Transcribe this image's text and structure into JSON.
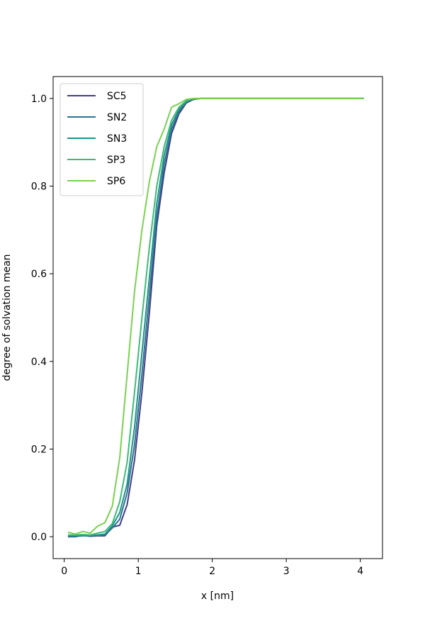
{
  "chart_data": {
    "type": "line",
    "title": "",
    "xlabel": "x [nm]",
    "ylabel": "degree of solvation mean",
    "xlim": [
      -0.15,
      4.3
    ],
    "ylim": [
      -0.05,
      1.05
    ],
    "xticks": [
      0,
      1,
      2,
      3,
      4
    ],
    "yticks": [
      0.0,
      0.2,
      0.4,
      0.6,
      0.8,
      1.0
    ],
    "xtick_labels": [
      "0",
      "1",
      "2",
      "3",
      "4"
    ],
    "ytick_labels": [
      "0.0",
      "0.2",
      "0.4",
      "0.6",
      "0.8",
      "1.0"
    ],
    "grid": false,
    "legend_position": "top-left",
    "x": [
      0.05,
      0.15,
      0.25,
      0.35,
      0.45,
      0.55,
      0.65,
      0.75,
      0.85,
      0.95,
      1.05,
      1.15,
      1.25,
      1.35,
      1.45,
      1.55,
      1.65,
      1.75,
      1.85,
      1.95,
      2.05,
      2.25,
      2.5,
      3.0,
      3.5,
      4.05
    ],
    "series": [
      {
        "name": "SC5",
        "color": "#433e85",
        "values": [
          0.0,
          0.0,
          0.003,
          0.001,
          0.002,
          0.002,
          0.022,
          0.026,
          0.073,
          0.175,
          0.33,
          0.51,
          0.71,
          0.83,
          0.92,
          0.965,
          0.99,
          0.998,
          1.0,
          1.0,
          1.0,
          1.0,
          1.0,
          1.0,
          1.0,
          1.0
        ]
      },
      {
        "name": "SN2",
        "color": "#2c728e",
        "values": [
          0.001,
          0.001,
          0.002,
          0.002,
          0.003,
          0.004,
          0.02,
          0.04,
          0.1,
          0.21,
          0.37,
          0.55,
          0.73,
          0.85,
          0.93,
          0.97,
          0.992,
          0.999,
          1.0,
          1.0,
          1.0,
          1.0,
          1.0,
          1.0,
          1.0,
          1.0
        ]
      },
      {
        "name": "SN3",
        "color": "#21918c",
        "values": [
          0.002,
          0.002,
          0.003,
          0.003,
          0.004,
          0.006,
          0.025,
          0.055,
          0.12,
          0.25,
          0.42,
          0.59,
          0.76,
          0.87,
          0.94,
          0.975,
          0.993,
          0.999,
          1.0,
          1.0,
          1.0,
          1.0,
          1.0,
          1.0,
          1.0,
          1.0
        ]
      },
      {
        "name": "SP3",
        "color": "#3bbb75",
        "values": [
          0.004,
          0.004,
          0.005,
          0.004,
          0.008,
          0.012,
          0.03,
          0.08,
          0.17,
          0.33,
          0.5,
          0.66,
          0.8,
          0.89,
          0.95,
          0.98,
          0.995,
          1.0,
          1.0,
          1.0,
          1.0,
          1.0,
          1.0,
          1.0,
          1.0,
          1.0
        ]
      },
      {
        "name": "SP6",
        "color": "#7ad151",
        "values": [
          0.01,
          0.006,
          0.012,
          0.008,
          0.024,
          0.032,
          0.07,
          0.18,
          0.37,
          0.56,
          0.7,
          0.81,
          0.89,
          0.93,
          0.98,
          0.988,
          0.998,
          1.0,
          1.0,
          1.0,
          1.0,
          1.0,
          1.0,
          1.0,
          1.0,
          1.0
        ]
      }
    ]
  }
}
